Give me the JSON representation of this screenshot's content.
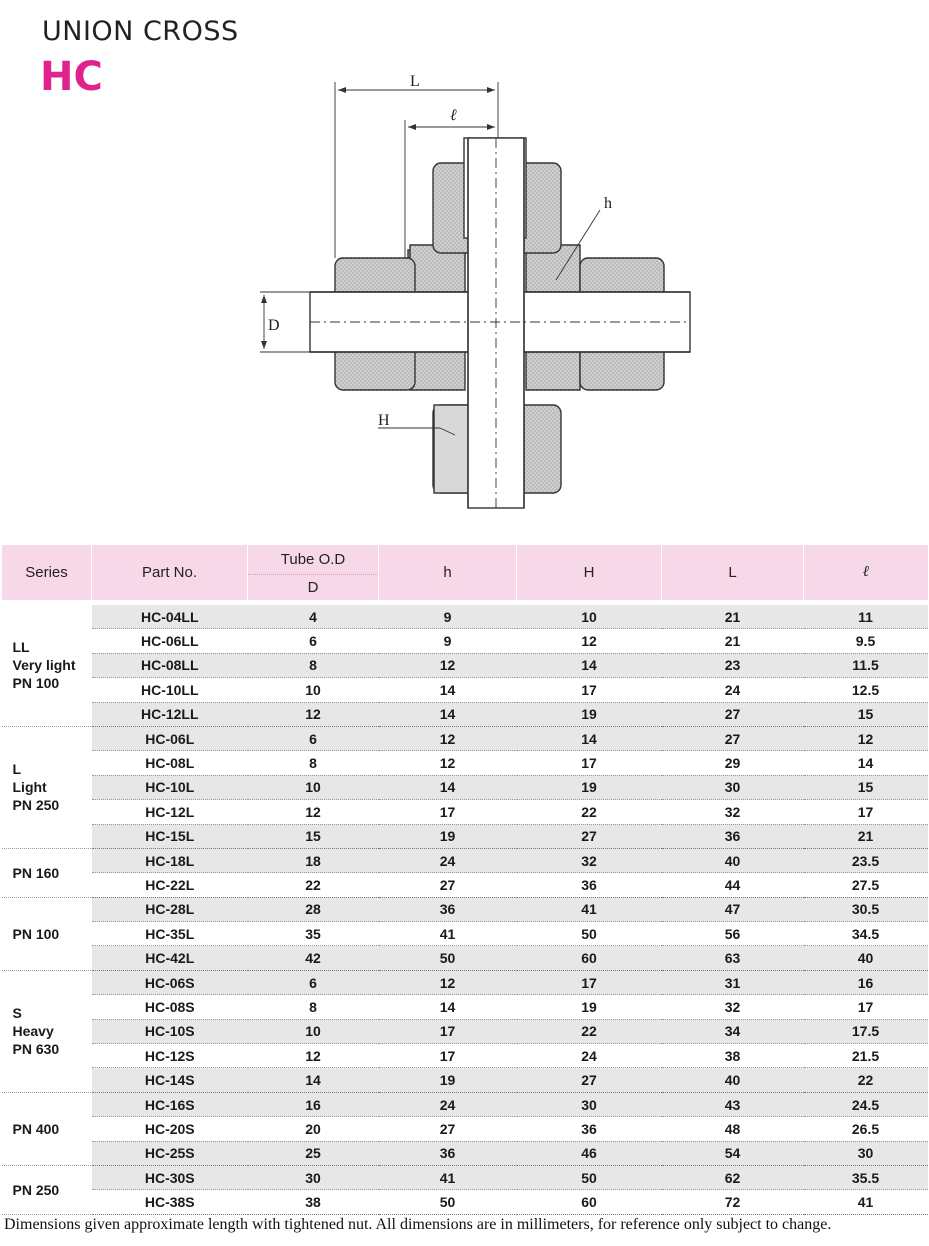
{
  "header": {
    "title": "UNION CROSS",
    "code": "HC"
  },
  "drawing": {
    "labels": {
      "L": "L",
      "l": "ℓ",
      "h": "h",
      "D": "D",
      "H": "H"
    }
  },
  "table": {
    "headers": {
      "series": "Series",
      "part": "Part No.",
      "tube": "Tube O.D",
      "tube_sub": "D",
      "h": "h",
      "H": "H",
      "L": "L",
      "l": "ℓ"
    },
    "groups": [
      {
        "series": [
          "LL",
          "Very light",
          "PN 100"
        ],
        "rows": [
          {
            "part": "HC-04LL",
            "d": "4",
            "h": "9",
            "H": "10",
            "L": "21",
            "l": "11"
          },
          {
            "part": "HC-06LL",
            "d": "6",
            "h": "9",
            "H": "12",
            "L": "21",
            "l": "9.5"
          },
          {
            "part": "HC-08LL",
            "d": "8",
            "h": "12",
            "H": "14",
            "L": "23",
            "l": "11.5"
          },
          {
            "part": "HC-10LL",
            "d": "10",
            "h": "14",
            "H": "17",
            "L": "24",
            "l": "12.5"
          },
          {
            "part": "HC-12LL",
            "d": "12",
            "h": "14",
            "H": "19",
            "L": "27",
            "l": "15"
          }
        ]
      },
      {
        "series": [
          "L",
          "Light",
          "PN 250"
        ],
        "rows": [
          {
            "part": "HC-06L",
            "d": "6",
            "h": "12",
            "H": "14",
            "L": "27",
            "l": "12"
          },
          {
            "part": "HC-08L",
            "d": "8",
            "h": "12",
            "H": "17",
            "L": "29",
            "l": "14"
          },
          {
            "part": "HC-10L",
            "d": "10",
            "h": "14",
            "H": "19",
            "L": "30",
            "l": "15"
          },
          {
            "part": "HC-12L",
            "d": "12",
            "h": "17",
            "H": "22",
            "L": "32",
            "l": "17"
          },
          {
            "part": "HC-15L",
            "d": "15",
            "h": "19",
            "H": "27",
            "L": "36",
            "l": "21"
          }
        ]
      },
      {
        "series": [
          "PN 160"
        ],
        "rows": [
          {
            "part": "HC-18L",
            "d": "18",
            "h": "24",
            "H": "32",
            "L": "40",
            "l": "23.5"
          },
          {
            "part": "HC-22L",
            "d": "22",
            "h": "27",
            "H": "36",
            "L": "44",
            "l": "27.5"
          }
        ]
      },
      {
        "series": [
          "PN 100"
        ],
        "rows": [
          {
            "part": "HC-28L",
            "d": "28",
            "h": "36",
            "H": "41",
            "L": "47",
            "l": "30.5"
          },
          {
            "part": "HC-35L",
            "d": "35",
            "h": "41",
            "H": "50",
            "L": "56",
            "l": "34.5"
          },
          {
            "part": "HC-42L",
            "d": "42",
            "h": "50",
            "H": "60",
            "L": "63",
            "l": "40"
          }
        ]
      },
      {
        "series": [
          "S",
          "Heavy",
          "PN 630"
        ],
        "rows": [
          {
            "part": "HC-06S",
            "d": "6",
            "h": "12",
            "H": "17",
            "L": "31",
            "l": "16"
          },
          {
            "part": "HC-08S",
            "d": "8",
            "h": "14",
            "H": "19",
            "L": "32",
            "l": "17"
          },
          {
            "part": "HC-10S",
            "d": "10",
            "h": "17",
            "H": "22",
            "L": "34",
            "l": "17.5"
          },
          {
            "part": "HC-12S",
            "d": "12",
            "h": "17",
            "H": "24",
            "L": "38",
            "l": "21.5"
          },
          {
            "part": "HC-14S",
            "d": "14",
            "h": "19",
            "H": "27",
            "L": "40",
            "l": "22"
          }
        ]
      },
      {
        "series": [
          "PN 400"
        ],
        "rows": [
          {
            "part": "HC-16S",
            "d": "16",
            "h": "24",
            "H": "30",
            "L": "43",
            "l": "24.5"
          },
          {
            "part": "HC-20S",
            "d": "20",
            "h": "27",
            "H": "36",
            "L": "48",
            "l": "26.5"
          },
          {
            "part": "HC-25S",
            "d": "25",
            "h": "36",
            "H": "46",
            "L": "54",
            "l": "30"
          }
        ]
      },
      {
        "series": [
          "PN 250"
        ],
        "rows": [
          {
            "part": "HC-30S",
            "d": "30",
            "h": "41",
            "H": "50",
            "L": "62",
            "l": "35.5"
          },
          {
            "part": "HC-38S",
            "d": "38",
            "h": "50",
            "H": "60",
            "L": "72",
            "l": "41"
          }
        ]
      }
    ]
  },
  "footnote": "Dimensions given approximate length with tightened nut. All dimensions are in millimeters, for reference only subject to change."
}
